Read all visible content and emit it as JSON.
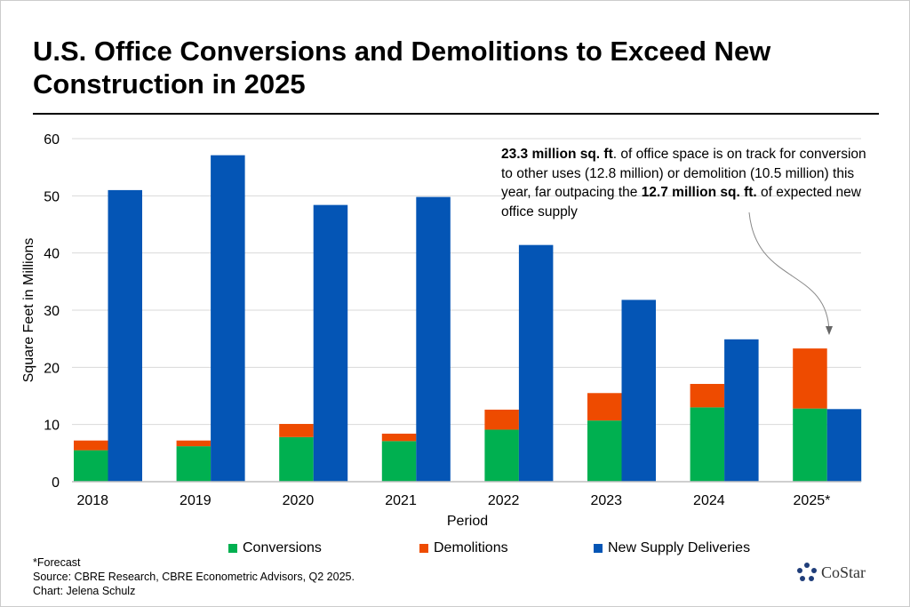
{
  "chart_data": {
    "type": "bar",
    "stacked_group": [
      "Conversions",
      "Demolitions"
    ],
    "title": "U.S. Office Conversions and Demolitions to Exceed New Construction in 2025",
    "xlabel": "Period",
    "ylabel": "Square Feet in Millions",
    "ylim": [
      0,
      60
    ],
    "yticks": [
      0,
      10,
      20,
      30,
      40,
      50,
      60
    ],
    "grid": true,
    "legend_position": "bottom",
    "categories": [
      "2018",
      "2019",
      "2020",
      "2021",
      "2022",
      "2023",
      "2024",
      "2025*"
    ],
    "series": [
      {
        "name": "Conversions",
        "color": "#00b050",
        "values": [
          5.5,
          6.2,
          7.8,
          7.1,
          9.1,
          10.7,
          13.0,
          12.8
        ]
      },
      {
        "name": "Demolitions",
        "color": "#ee4b00",
        "values": [
          1.7,
          1.0,
          2.3,
          1.3,
          3.5,
          4.8,
          4.1,
          10.5
        ]
      },
      {
        "name": "New Supply Deliveries",
        "color": "#0455b5",
        "values": [
          51.0,
          57.1,
          48.4,
          49.8,
          41.4,
          31.8,
          24.9,
          12.7
        ]
      }
    ],
    "annotation": {
      "b1": "23.3 million sq. ft",
      "t1": ". of office space is on track for conversion to other uses (12.8 million) or demolition (10.5 million) this year, far outpacing the ",
      "b2": "12.7 million sq. ft.",
      "t2": " of expected new office supply"
    }
  },
  "footer": {
    "note": "*Forecast",
    "source": "Source: CBRE Research, CBRE Econometric Advisors, Q2 2025.",
    "credit": "Chart: Jelena Schulz"
  },
  "logo": {
    "text": "CoStar",
    "color": "#1f3d7a"
  }
}
